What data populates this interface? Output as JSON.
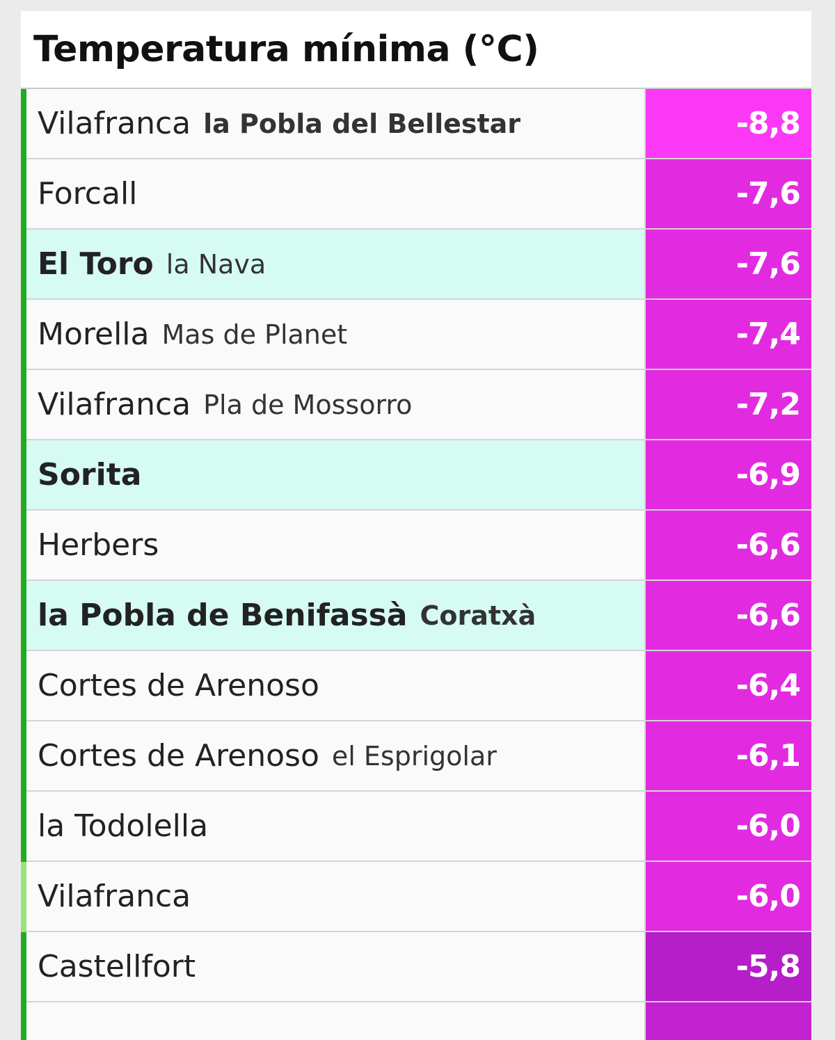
{
  "title": "Temperatura mínima (°C)",
  "colors": {
    "bar_green": "#22aa22",
    "bar_light_green": "#9be27b",
    "highlight_row": "#d6fbf3",
    "plain_row": "#fafafa"
  },
  "rows": [
    {
      "name": "Vilafranca",
      "sub": "la Pobla del Bellestar",
      "value": "-8,8",
      "name_bold": false,
      "sub_bold": true,
      "highlight": false,
      "bar": "green",
      "value_color": "#fb38f6"
    },
    {
      "name": "Forcall",
      "sub": "",
      "value": "-7,6",
      "name_bold": false,
      "sub_bold": false,
      "highlight": false,
      "bar": "green",
      "value_color": "#e22be0"
    },
    {
      "name": "El Toro",
      "sub": "la Nava",
      "value": "-7,6",
      "name_bold": true,
      "sub_bold": false,
      "highlight": true,
      "bar": "green",
      "value_color": "#e22be0"
    },
    {
      "name": "Morella",
      "sub": "Mas de Planet",
      "value": "-7,4",
      "name_bold": false,
      "sub_bold": false,
      "highlight": false,
      "bar": "green",
      "value_color": "#e22be0"
    },
    {
      "name": "Vilafranca",
      "sub": "Pla de Mossorro",
      "value": "-7,2",
      "name_bold": false,
      "sub_bold": false,
      "highlight": false,
      "bar": "green",
      "value_color": "#e22be0"
    },
    {
      "name": "Sorita",
      "sub": "",
      "value": "-6,9",
      "name_bold": true,
      "sub_bold": false,
      "highlight": true,
      "bar": "green",
      "value_color": "#e22be0"
    },
    {
      "name": "Herbers",
      "sub": "",
      "value": "-6,6",
      "name_bold": false,
      "sub_bold": false,
      "highlight": false,
      "bar": "green",
      "value_color": "#e22be0"
    },
    {
      "name": "la Pobla de Benifassà",
      "sub": "Coratxà",
      "value": "-6,6",
      "name_bold": true,
      "sub_bold": true,
      "highlight": true,
      "bar": "green",
      "value_color": "#e22be0"
    },
    {
      "name": "Cortes de Arenoso",
      "sub": "",
      "value": "-6,4",
      "name_bold": false,
      "sub_bold": false,
      "highlight": false,
      "bar": "green",
      "value_color": "#e22be0"
    },
    {
      "name": "Cortes de Arenoso",
      "sub": "el Esprigolar",
      "value": "-6,1",
      "name_bold": false,
      "sub_bold": false,
      "highlight": false,
      "bar": "green",
      "value_color": "#e22be0"
    },
    {
      "name": "la Todolella",
      "sub": "",
      "value": "-6,0",
      "name_bold": false,
      "sub_bold": false,
      "highlight": false,
      "bar": "green",
      "value_color": "#e22be0"
    },
    {
      "name": "Vilafranca",
      "sub": "",
      "value": "-6,0",
      "name_bold": false,
      "sub_bold": false,
      "highlight": false,
      "bar": "light",
      "value_color": "#e22be0"
    },
    {
      "name": "Castellfort",
      "sub": "",
      "value": "-5,8",
      "name_bold": false,
      "sub_bold": false,
      "highlight": false,
      "bar": "green",
      "value_color": "#b51ec8"
    },
    {
      "name": "",
      "sub": "",
      "value": "",
      "name_bold": false,
      "sub_bold": false,
      "highlight": false,
      "bar": "green",
      "value_color": "#c322d0"
    }
  ]
}
